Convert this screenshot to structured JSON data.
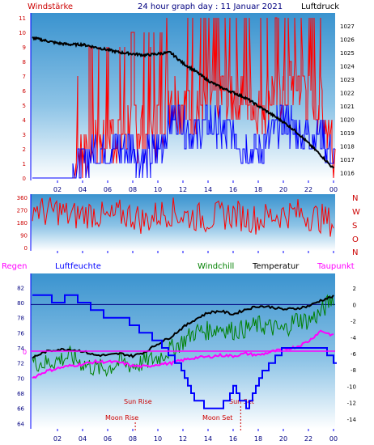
{
  "header": {
    "left": "Windstärke",
    "center": "24 hour graph day : 11 Januar 2021",
    "right": "Luftdruck"
  },
  "legend": {
    "regen": "Regen",
    "luftfeuchte": "Luftfeuchte",
    "windchill": "Windchill",
    "temperatur": "Temperatur",
    "taupunkt": "Taupunkt"
  },
  "compass": [
    "N",
    "W",
    "S",
    "O",
    "N"
  ],
  "colors": {
    "wind_speed": "#ff0000",
    "wind_gust_avg": "#0000ff",
    "pressure": "#000000",
    "direction": "#ff0000",
    "humidity": "#0000ff",
    "temperature": "#000000",
    "windchill": "#008000",
    "dewpoint": "#ff00ff",
    "rain": "#ff00ff",
    "baseline": "#0000ff",
    "label_blue": "#000080",
    "label_red": "#cc0000"
  },
  "chart_data": [
    {
      "type": "line",
      "x_ticks": [
        "02",
        "04",
        "06",
        "08",
        "10",
        "12",
        "14",
        "16",
        "18",
        "20",
        "22",
        "00"
      ],
      "left_axis": {
        "ticks": [
          "0",
          "1",
          "2",
          "3",
          "4",
          "5",
          "6",
          "7",
          "8",
          "9",
          "10",
          "11"
        ],
        "ylim": [
          0,
          11
        ]
      },
      "right_axis": {
        "ticks": [
          "1016",
          "1017",
          "1018",
          "1019",
          "1020",
          "1021",
          "1022",
          "1023",
          "1024",
          "1025",
          "1026",
          "1027"
        ],
        "ylim": [
          1015.6,
          1027.6
        ]
      },
      "series": [
        {
          "x": [
            0,
            1,
            2,
            3,
            4,
            5,
            6,
            7,
            8,
            9,
            10,
            11,
            12,
            13,
            14,
            15,
            16,
            17,
            18,
            19,
            20,
            21,
            22,
            23,
            24
          ],
          "values": [
            1026.1,
            1025.9,
            1025.7,
            1025.6,
            1025.6,
            1025.4,
            1025.2,
            1025.0,
            1024.9,
            1024.8,
            1024.9,
            1025.0,
            1024.2,
            1023.6,
            1022.9,
            1022.4,
            1022.0,
            1021.6,
            1021.0,
            1020.4,
            1019.8,
            1019.1,
            1018.2,
            1017.3,
            1016.3
          ]
        },
        {
          "x": [
            0,
            1,
            2,
            3,
            4,
            5,
            6,
            7,
            8,
            9,
            10,
            11,
            12,
            13,
            14,
            15,
            16,
            17,
            18,
            19,
            20,
            21,
            22,
            23,
            24
          ],
          "values": [
            0,
            0,
            0,
            0,
            2,
            3,
            3,
            3,
            4,
            3,
            4,
            6,
            5,
            5,
            5,
            6,
            6,
            6,
            5,
            6,
            6,
            7,
            6,
            5,
            2
          ]
        },
        {
          "x": [
            0,
            1,
            2,
            3,
            4,
            5,
            6,
            7,
            8,
            9,
            10,
            11,
            12,
            13,
            14,
            15,
            16,
            17,
            18,
            19,
            20,
            21,
            22,
            23,
            24
          ],
          "values": [
            0,
            0,
            0,
            0,
            1,
            2,
            2,
            2,
            2,
            1,
            2,
            4,
            4,
            3,
            4,
            3,
            3,
            2,
            2,
            3,
            4,
            3,
            3,
            3,
            1
          ]
        }
      ]
    },
    {
      "type": "line",
      "y_ticks": [
        "0",
        "90",
        "180",
        "270",
        "360"
      ],
      "ylim": [
        0,
        360
      ],
      "series": [
        {
          "x": [
            0,
            1,
            2,
            3,
            4,
            5,
            6,
            7,
            8,
            9,
            10,
            11,
            12,
            13,
            14,
            15,
            16,
            17,
            18,
            19,
            20,
            21,
            22,
            23,
            24
          ],
          "values": [
            300,
            250,
            270,
            220,
            240,
            250,
            200,
            240,
            230,
            190,
            240,
            260,
            230,
            220,
            210,
            230,
            240,
            220,
            200,
            230,
            240,
            250,
            230,
            210,
            180
          ]
        }
      ]
    },
    {
      "type": "line",
      "left_axis": {
        "ticks": [
          "64",
          "66",
          "68",
          "70",
          "72",
          "74",
          "76",
          "78",
          "80",
          "82"
        ],
        "ylim": [
          63.5,
          83
        ]
      },
      "right_axis": {
        "ticks": [
          "-14",
          "-12",
          "-10",
          "-8",
          "-6",
          "-4",
          "-2",
          "0",
          "2"
        ],
        "ylim": [
          -15,
          3
        ]
      },
      "rain_marker": "0",
      "annotations": {
        "sun_rise": "Sun Rise",
        "sun_set": "Sun Set",
        "moon_rise": "Moon Rise",
        "moon_set": "Moon Set"
      },
      "events_hours": {
        "sun_rise": 8.2,
        "sun_set": 16.6,
        "moon_rise": 8.2,
        "moon_set": 15.6
      },
      "series": [
        {
          "x": [
            0,
            1,
            2,
            3,
            4,
            5,
            6,
            7,
            8,
            9,
            10,
            11,
            12,
            13,
            14,
            15,
            16,
            17,
            18,
            19,
            20,
            21,
            22,
            23,
            24
          ],
          "values": [
            81,
            81,
            80,
            81,
            80,
            79,
            78,
            78,
            77,
            76,
            75,
            73,
            71,
            67,
            66,
            66,
            69,
            66,
            70,
            72,
            74,
            74,
            74,
            74,
            72
          ]
        },
        {
          "x": [
            0,
            1,
            2,
            3,
            4,
            5,
            6,
            7,
            8,
            9,
            10,
            11,
            12,
            13,
            14,
            15,
            16,
            17,
            18,
            19,
            20,
            21,
            22,
            23,
            24
          ],
          "values": [
            -6.5,
            -5.8,
            -5.5,
            -5.5,
            -5.7,
            -6.2,
            -6.2,
            -6.0,
            -6.3,
            -5.8,
            -4.8,
            -4.0,
            -2.8,
            -1.8,
            -1.0,
            -0.8,
            -1.2,
            -0.6,
            -0.2,
            -0.3,
            -0.6,
            -0.5,
            -0.2,
            0.5,
            1.0
          ]
        },
        {
          "x": [
            0,
            1,
            2,
            3,
            4,
            5,
            6,
            7,
            8,
            9,
            10,
            11,
            12,
            13,
            14,
            15,
            16,
            17,
            18,
            19,
            20,
            21,
            22,
            23,
            24
          ],
          "values": [
            -7.0,
            -7.2,
            -6.8,
            -6.3,
            -7.2,
            -7.8,
            -7.8,
            -7.0,
            -7.5,
            -7.0,
            -6.5,
            -5.5,
            -4.5,
            -3.3,
            -3.2,
            -2.8,
            -3.2,
            -3.0,
            -2.5,
            -2.8,
            -3.2,
            -1.8,
            -2.0,
            -1.0,
            1.0
          ]
        },
        {
          "x": [
            0,
            1,
            2,
            3,
            4,
            5,
            6,
            7,
            8,
            9,
            10,
            11,
            12,
            13,
            14,
            15,
            16,
            17,
            18,
            19,
            20,
            21,
            22,
            23,
            24
          ],
          "values": [
            -9.0,
            -8.2,
            -7.8,
            -7.5,
            -7.3,
            -7.0,
            -7.0,
            -7.1,
            -7.5,
            -7.6,
            -7.3,
            -7.2,
            -6.8,
            -6.5,
            -6.4,
            -6.2,
            -6.3,
            -6.0,
            -6.2,
            -5.8,
            -5.5,
            -5.2,
            -4.5,
            -3.2,
            -3.8
          ]
        }
      ]
    }
  ]
}
